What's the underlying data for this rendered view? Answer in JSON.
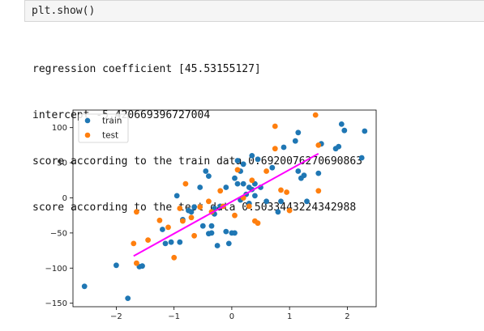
{
  "code": {
    "line": "plt.show()"
  },
  "output": {
    "lines": [
      "regression coefficient [45.53155127]",
      "intercept -5.420669396727004",
      "score according to the train data 0.6920076270690863",
      "score according to the test data 0.5033443224342988"
    ]
  },
  "chart_data": {
    "type": "scatter",
    "xlim": [
      -2.75,
      2.5
    ],
    "ylim": [
      -155,
      125
    ],
    "xticks": [
      -2,
      -1,
      0,
      1,
      2
    ],
    "yticks": [
      -150,
      -100,
      -50,
      0,
      50,
      100
    ],
    "xtick_labels": [
      "−2",
      "−1",
      "0",
      "1",
      "2"
    ],
    "ytick_labels": [
      "−150",
      "−100",
      "−50",
      "0",
      "50",
      "100"
    ],
    "grid": false,
    "legend_position": "top-left",
    "series": [
      {
        "name": "train",
        "color": "#1f77b4",
        "points": [
          [
            -2.55,
            -126
          ],
          [
            -2.0,
            -96
          ],
          [
            -1.8,
            -143
          ],
          [
            -1.6,
            -98
          ],
          [
            -1.55,
            -97
          ],
          [
            -1.2,
            -45
          ],
          [
            -1.15,
            -65
          ],
          [
            -1.05,
            -63
          ],
          [
            -0.95,
            3
          ],
          [
            -0.9,
            -63
          ],
          [
            -0.85,
            -31
          ],
          [
            -0.75,
            -18
          ],
          [
            -0.7,
            -20
          ],
          [
            -0.65,
            -13
          ],
          [
            -0.5,
            -40
          ],
          [
            -0.45,
            38
          ],
          [
            -0.4,
            31
          ],
          [
            -0.4,
            -51
          ],
          [
            -0.35,
            -50
          ],
          [
            -0.35,
            -40
          ],
          [
            -0.3,
            -15
          ],
          [
            -0.25,
            -68
          ],
          [
            -0.2,
            -12
          ],
          [
            -0.1,
            -48
          ],
          [
            -0.1,
            15
          ],
          [
            -0.05,
            -65
          ],
          [
            0.0,
            -50
          ],
          [
            0.05,
            -50
          ],
          [
            0.05,
            28
          ],
          [
            0.1,
            53
          ],
          [
            0.15,
            -3
          ],
          [
            0.2,
            20
          ],
          [
            0.25,
            5
          ],
          [
            0.3,
            15
          ],
          [
            0.3,
            -8
          ],
          [
            0.35,
            60
          ],
          [
            0.35,
            12
          ],
          [
            0.4,
            3
          ],
          [
            0.4,
            20
          ],
          [
            0.45,
            55
          ],
          [
            0.5,
            15
          ],
          [
            0.6,
            -5
          ],
          [
            0.7,
            43
          ],
          [
            0.8,
            -20
          ],
          [
            0.85,
            -5
          ],
          [
            0.9,
            72
          ],
          [
            1.1,
            81
          ],
          [
            1.15,
            38
          ],
          [
            1.2,
            28
          ],
          [
            1.25,
            32
          ],
          [
            1.3,
            -5
          ],
          [
            1.5,
            35
          ],
          [
            1.55,
            77
          ],
          [
            1.8,
            70
          ],
          [
            1.85,
            73
          ],
          [
            1.9,
            105
          ],
          [
            1.95,
            96
          ],
          [
            2.25,
            57
          ],
          [
            2.3,
            95
          ],
          [
            0.15,
            38
          ],
          [
            0.2,
            48
          ],
          [
            -0.55,
            15
          ],
          [
            1.15,
            93
          ],
          [
            0.1,
            20
          ],
          [
            -0.3,
            -23
          ]
        ]
      },
      {
        "name": "test",
        "color": "#ff7f0e",
        "points": [
          [
            -1.7,
            -65
          ],
          [
            -1.65,
            -93
          ],
          [
            -1.65,
            -20
          ],
          [
            -1.45,
            -60
          ],
          [
            -1.25,
            -32
          ],
          [
            -1.1,
            -42
          ],
          [
            -1.0,
            -85
          ],
          [
            -0.85,
            -33
          ],
          [
            -0.8,
            20
          ],
          [
            -0.7,
            -28
          ],
          [
            -0.65,
            -54
          ],
          [
            -0.55,
            -13
          ],
          [
            -0.4,
            -5
          ],
          [
            -0.35,
            -20
          ],
          [
            -0.2,
            10
          ],
          [
            -0.15,
            -12
          ],
          [
            0.05,
            -25
          ],
          [
            0.1,
            40
          ],
          [
            0.2,
            0
          ],
          [
            0.35,
            25
          ],
          [
            0.4,
            -33
          ],
          [
            0.45,
            -36
          ],
          [
            0.6,
            38
          ],
          [
            0.75,
            102
          ],
          [
            0.75,
            70
          ],
          [
            0.85,
            11
          ],
          [
            0.95,
            8
          ],
          [
            1.0,
            -18
          ],
          [
            1.45,
            118
          ],
          [
            1.5,
            75
          ],
          [
            1.5,
            10
          ],
          [
            0.3,
            -12
          ],
          [
            -0.9,
            -15
          ]
        ]
      }
    ],
    "regression_line": {
      "color": "#ff00ff",
      "x": [
        -1.7,
        1.5
      ],
      "y": [
        -82.8,
        62.9
      ]
    }
  }
}
